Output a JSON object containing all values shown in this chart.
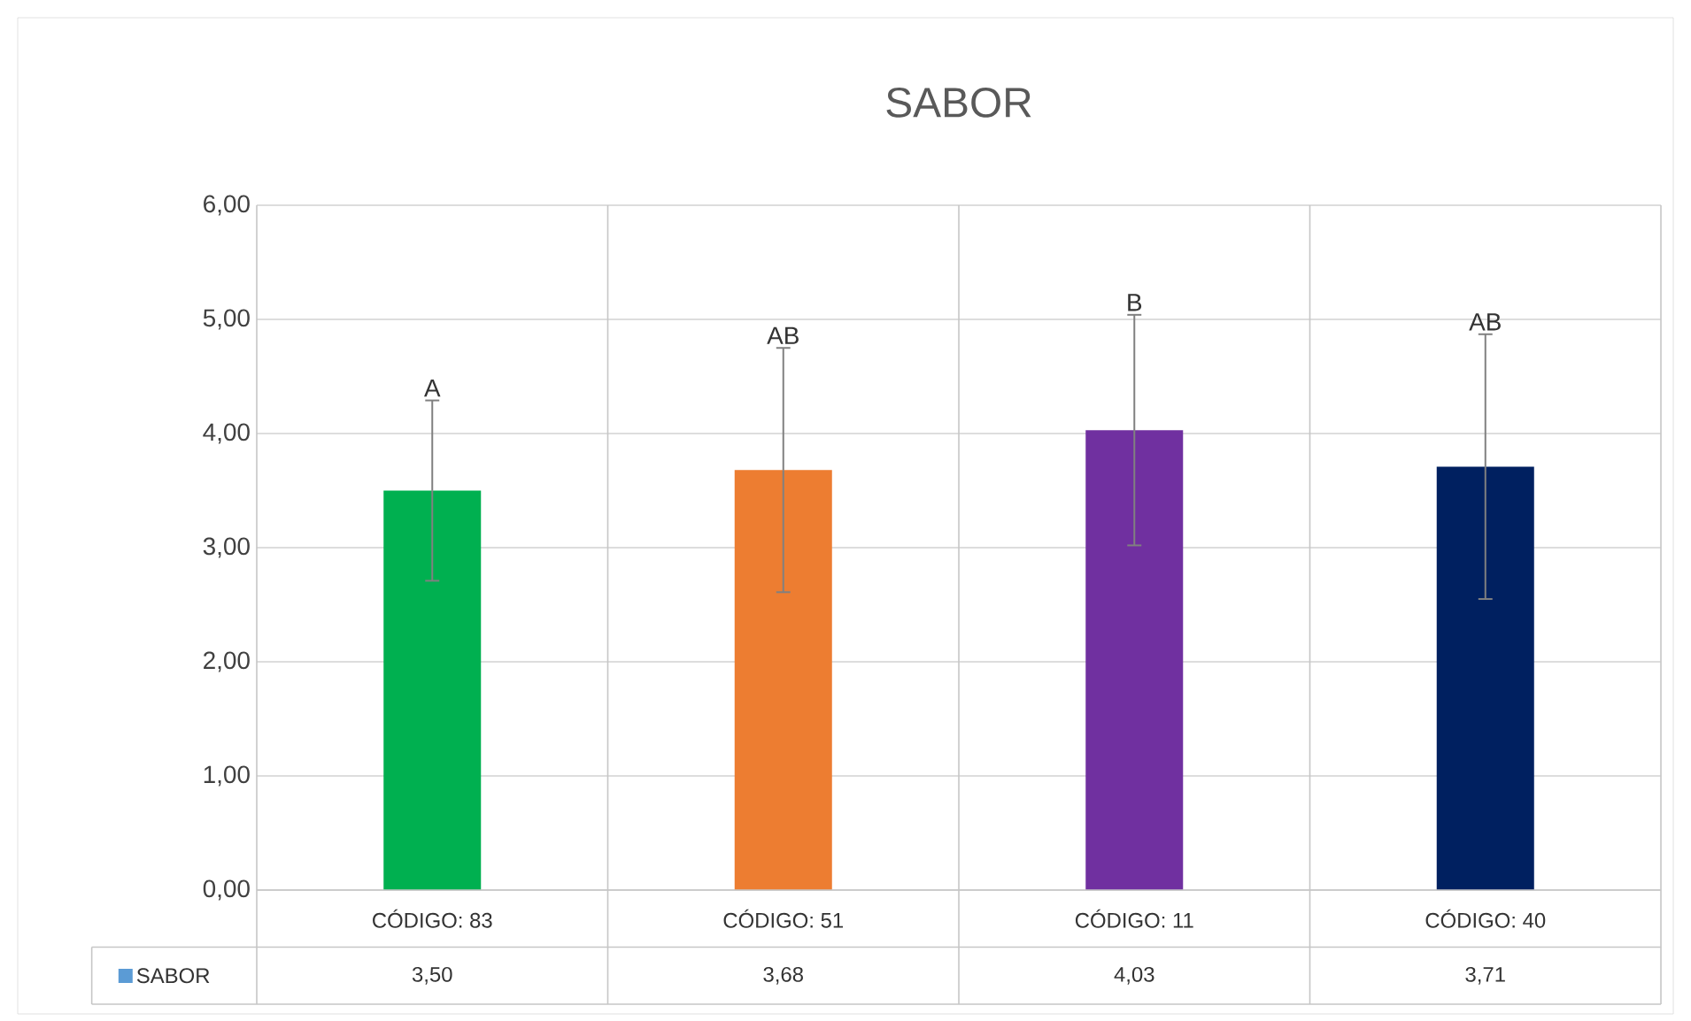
{
  "chart_data": {
    "type": "bar",
    "title": "SABOR",
    "categories": [
      "CÓDIGO: 83",
      "CÓDIGO: 51",
      "CÓDIGO: 11",
      "CÓDIGO: 40"
    ],
    "series": [
      {
        "name": "SABOR",
        "color": "#5b9bd5",
        "colors": [
          "#00b050",
          "#ed7d31",
          "#7030a0",
          "#002060"
        ],
        "values": [
          3.5,
          3.68,
          4.03,
          3.71
        ],
        "errors": [
          0.79,
          1.07,
          1.01,
          1.16
        ],
        "value_labels": [
          "3,50",
          "3,68",
          "4,03",
          "3,71"
        ]
      }
    ],
    "ylim": [
      0,
      6
    ],
    "yticks": [
      {
        "value": 0,
        "label": "0,00"
      },
      {
        "value": 1,
        "label": "1,00"
      },
      {
        "value": 2,
        "label": "2,00"
      },
      {
        "value": 3,
        "label": "3,00"
      },
      {
        "value": 4,
        "label": "4,00"
      },
      {
        "value": 5,
        "label": "5,00"
      },
      {
        "value": 6,
        "label": "6,00"
      }
    ],
    "grid": "y",
    "annotations": [
      {
        "text": "A",
        "x": "CÓDIGO: 83",
        "y": 4.29
      },
      {
        "text": "AB",
        "x": "CÓDIGO: 51",
        "y": 4.75
      },
      {
        "text": "B",
        "x": "CÓDIGO: 11",
        "y": 5.04
      },
      {
        "text": "AB",
        "x": "CÓDIGO: 40",
        "y": 4.87
      }
    ]
  }
}
